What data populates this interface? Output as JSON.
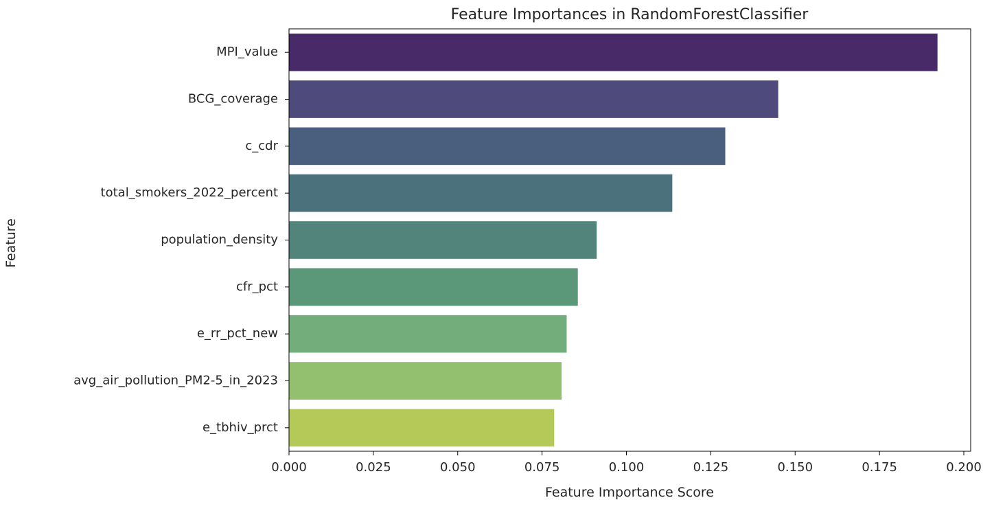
{
  "chart_data": {
    "type": "bar",
    "orientation": "horizontal",
    "title": "Feature Importances in RandomForestClassifier",
    "xlabel": "Feature Importance Score",
    "ylabel": "Feature",
    "xlim": [
      0.0,
      0.2
    ],
    "xticks": [
      "0.000",
      "0.025",
      "0.050",
      "0.075",
      "0.100",
      "0.125",
      "0.150",
      "0.175",
      "0.200"
    ],
    "categories": [
      "MPI_value",
      "BCG_coverage",
      "c_cdr",
      "total_smokers_2022_percent",
      "population_density",
      "cfr_pct",
      "e_rr_pct_new",
      "avg_air_pollution_PM2-5_in_2023",
      "e_tbhiv_prct"
    ],
    "values": [
      0.1922,
      0.145,
      0.1293,
      0.1136,
      0.0912,
      0.0856,
      0.0823,
      0.0808,
      0.0786
    ],
    "colors": [
      "#482a68",
      "#4e4b7c",
      "#4a5f7e",
      "#4b717c",
      "#52847c",
      "#5b987a",
      "#72ad7b",
      "#92c06e",
      "#b4c957"
    ],
    "grid": false,
    "legend": "none"
  }
}
